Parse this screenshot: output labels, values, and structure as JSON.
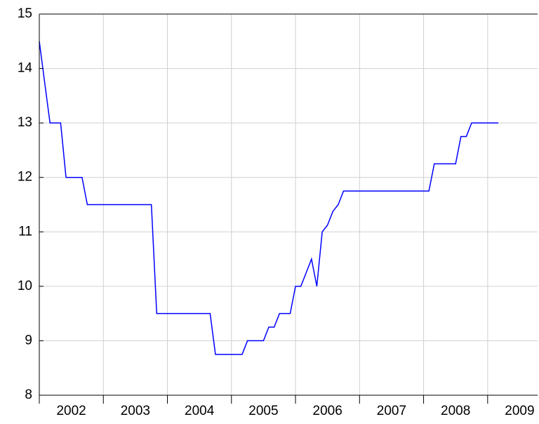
{
  "chart_data": {
    "type": "line",
    "x": [
      2002,
      2002.083,
      2002.167,
      2002.25,
      2002.333,
      2002.417,
      2002.5,
      2002.583,
      2002.667,
      2002.75,
      2002.833,
      2002.917,
      2003,
      2003.083,
      2003.167,
      2003.25,
      2003.333,
      2003.417,
      2003.5,
      2003.583,
      2003.667,
      2003.75,
      2003.833,
      2003.917,
      2004,
      2004.083,
      2004.167,
      2004.25,
      2004.333,
      2004.417,
      2004.5,
      2004.583,
      2004.667,
      2004.75,
      2004.833,
      2004.917,
      2005,
      2005.083,
      2005.167,
      2005.25,
      2005.333,
      2005.417,
      2005.5,
      2005.583,
      2005.667,
      2005.75,
      2005.833,
      2005.917,
      2006,
      2006.083,
      2006.167,
      2006.25,
      2006.333,
      2006.417,
      2006.5,
      2006.583,
      2006.667,
      2006.75,
      2006.833,
      2006.917,
      2007,
      2007.083,
      2007.167,
      2007.25,
      2007.333,
      2007.417,
      2007.5,
      2007.583,
      2007.667,
      2007.75,
      2007.833,
      2007.917,
      2008,
      2008.083,
      2008.167,
      2008.25,
      2008.333,
      2008.417,
      2008.5,
      2008.583,
      2008.667,
      2008.75,
      2008.833,
      2008.917,
      2009,
      2009.083,
      2009.167
    ],
    "series": [
      {
        "color": "#0000ff",
        "values": [
          14.5,
          13.75,
          13,
          13,
          13,
          12,
          12,
          12,
          12,
          11.5,
          11.5,
          11.5,
          11.5,
          11.5,
          11.5,
          11.5,
          11.5,
          11.5,
          11.5,
          11.5,
          11.5,
          11.5,
          9.5,
          9.5,
          9.5,
          9.5,
          9.5,
          9.5,
          9.5,
          9.5,
          9.5,
          9.5,
          9.5,
          8.75,
          8.75,
          8.75,
          8.75,
          8.75,
          8.75,
          9,
          9,
          9,
          9,
          9.25,
          9.25,
          9.5,
          9.5,
          9.5,
          10,
          10,
          10.25,
          10.5,
          10,
          11,
          11.125,
          11.375,
          11.5,
          11.75,
          11.75,
          11.75,
          11.75,
          11.75,
          11.75,
          11.75,
          11.75,
          11.75,
          11.75,
          11.75,
          11.75,
          11.75,
          11.75,
          11.75,
          11.75,
          11.75,
          12.25,
          12.25,
          12.25,
          12.25,
          12.25,
          12.75,
          12.75,
          13,
          13,
          13,
          13,
          13,
          13
        ]
      }
    ],
    "xlim": [
      2002,
      2009.78
    ],
    "xticks": [
      2002,
      2003,
      2004,
      2005,
      2006,
      2007,
      2008,
      2009
    ],
    "ylim": [
      8,
      15
    ],
    "yticks": [
      8,
      9,
      10,
      11,
      12,
      13,
      14,
      15
    ],
    "grid": true
  }
}
